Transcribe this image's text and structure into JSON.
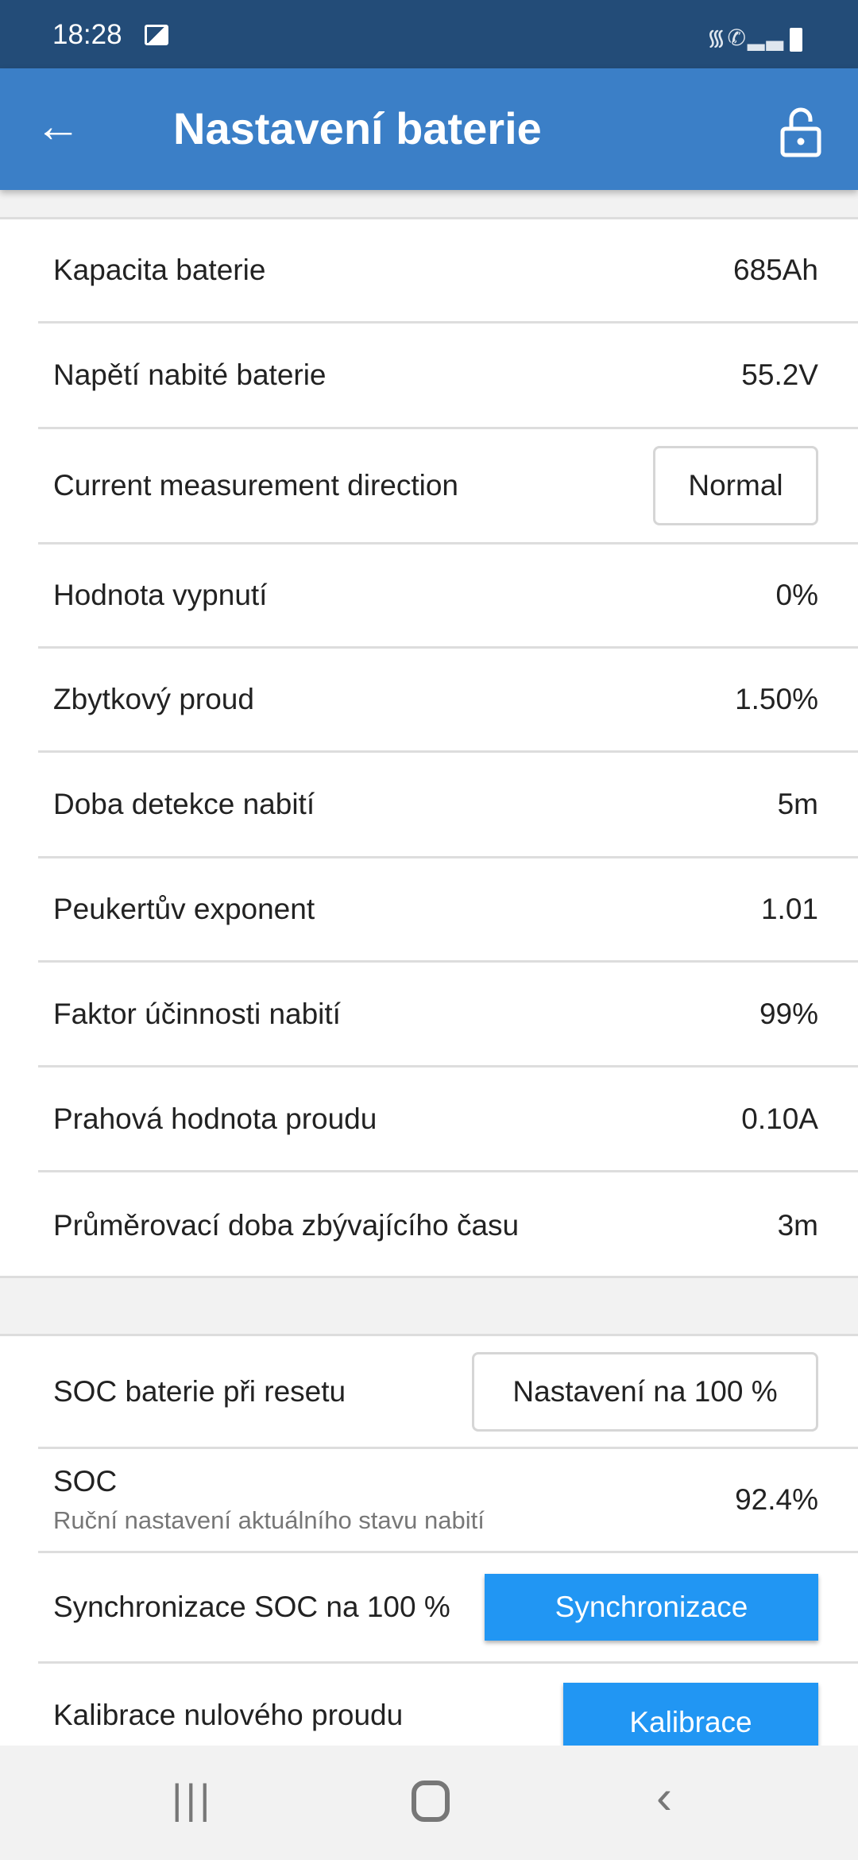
{
  "status_bar": {
    "time": "18:28",
    "icons": [
      "image-icon",
      "wifi-icon",
      "wifi-calling-icon",
      "signal-icon",
      "battery-icon"
    ]
  },
  "app_bar": {
    "title": "Nastavení baterie",
    "back_icon": "arrow-left-icon",
    "lock_icon": "lock-open-icon"
  },
  "settings": [
    {
      "label": "Kapacita baterie",
      "value": "685Ah"
    },
    {
      "label": "Napětí nabité baterie",
      "value": "55.2V"
    },
    {
      "label": "Current measurement direction",
      "value": "Normal"
    },
    {
      "label": "Hodnota vypnutí",
      "value": "0%"
    },
    {
      "label": "Zbytkový proud",
      "value": "1.50%"
    },
    {
      "label": "Doba detekce nabití",
      "value": "5m"
    },
    {
      "label": "Peukertův exponent",
      "value": "1.01"
    },
    {
      "label": "Faktor účinnosti nabití",
      "value": "99%"
    },
    {
      "label": "Prahová hodnota proudu",
      "value": "0.10A"
    },
    {
      "label": "Průměrovací doba zbývajícího času",
      "value": "3m"
    }
  ],
  "soc": {
    "reset_label": "SOC baterie při resetu",
    "reset_value": "Nastavení na 100 %",
    "soc_label": "SOC",
    "soc_sub": "Ruční nastavení aktuálního stavu nabití",
    "soc_value": "92.4%",
    "sync_label": "Synchronizace SOC na 100 %",
    "sync_button": "Synchronizace",
    "calib_label": "Kalibrace nulového proudu",
    "calib_button": "Kalibrace"
  },
  "colors": {
    "status_bar": "#234c78",
    "app_bar": "#3b7fc7",
    "button": "#2196f3"
  },
  "nav_bar": {
    "icons": [
      "recents-icon",
      "home-icon",
      "back-icon"
    ]
  }
}
